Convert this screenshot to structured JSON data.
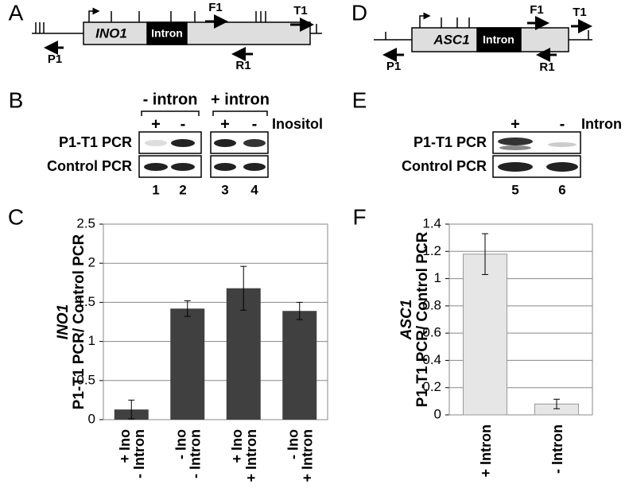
{
  "panel_labels": [
    "A",
    "B",
    "C",
    "D",
    "E",
    "F"
  ],
  "gene_diagrams": [
    {
      "gene": "INO1",
      "intron": "Intron",
      "primers": [
        "F1",
        "T1",
        "P1",
        "R1"
      ]
    },
    {
      "gene": "ASC1",
      "intron": "Intron",
      "primers": [
        "F1",
        "T1",
        "P1",
        "R1"
      ]
    }
  ],
  "gels": [
    {
      "groups": [
        "- intron",
        "+ intron"
      ],
      "lanes": [
        "+",
        "-",
        "+",
        "-"
      ],
      "condition": "Inositol",
      "rows": [
        "P1-T1 PCR",
        "Control PCR"
      ],
      "lane_numbers": [
        "1",
        "2",
        "3",
        "4"
      ]
    },
    {
      "lanes": [
        "+",
        "-"
      ],
      "condition": "Intron",
      "rows": [
        "P1-T1 PCR",
        "Control PCR"
      ],
      "lane_numbers": [
        "5",
        "6"
      ]
    }
  ],
  "chart_data": [
    {
      "type": "bar",
      "ylabel_gene": "INO1",
      "ylabel": "P1-T1 PCR/ Control PCR",
      "categories": [
        [
          "+ Ino",
          "- Intron"
        ],
        [
          "- Ino",
          "- Intron"
        ],
        [
          "+ Ino",
          "+ Intron"
        ],
        [
          "- Ino",
          "+ Intron"
        ]
      ],
      "values": [
        0.13,
        1.42,
        1.68,
        1.39
      ],
      "errors": [
        0.12,
        0.1,
        0.28,
        0.11
      ],
      "color": "#404040",
      "ylim": [
        0,
        2.5
      ],
      "yticks": [
        0,
        0.5,
        1,
        1.5,
        2,
        2.5
      ],
      "grid": true
    },
    {
      "type": "bar",
      "ylabel_gene": "ASC1",
      "ylabel": "P1-T1 PCR/ Control PCR",
      "categories": [
        [
          "+ Intron"
        ],
        [
          "- Intron"
        ]
      ],
      "values": [
        1.18,
        0.08
      ],
      "errors": [
        0.15,
        0.035
      ],
      "color": "#e6e6e6",
      "ylim": [
        0,
        1.4
      ],
      "yticks": [
        0,
        0.2,
        0.4,
        0.6,
        0.8,
        1,
        1.2,
        1.4
      ],
      "grid": true
    }
  ]
}
